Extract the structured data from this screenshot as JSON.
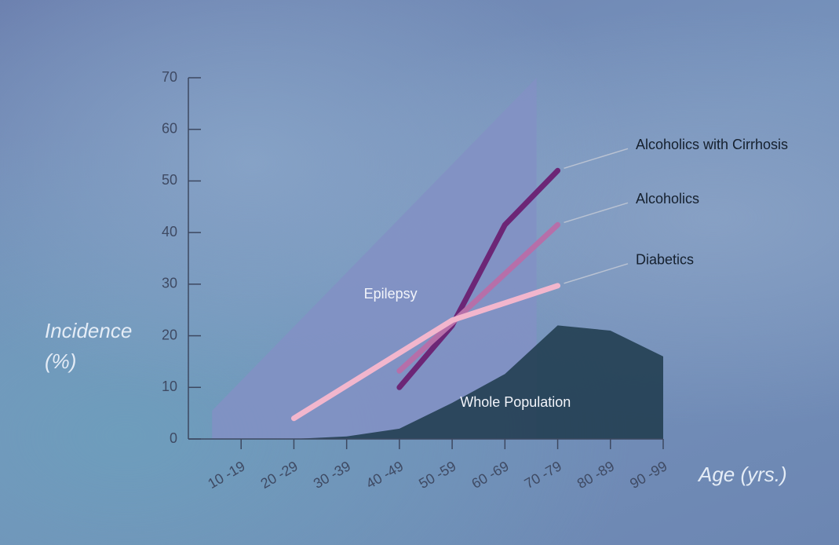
{
  "chart_data": {
    "type": "line",
    "y_label_lines": [
      "Incidence",
      "(%)"
    ],
    "x_label": "Age (yrs.)",
    "xlim": [
      5,
      95
    ],
    "xticks": [
      {
        "value": 15,
        "label": "10 -19"
      },
      {
        "value": 25,
        "label": "20 -29"
      },
      {
        "value": 35,
        "label": "30 -39"
      },
      {
        "value": 45,
        "label": "40 -49"
      },
      {
        "value": 55,
        "label": "50 -59"
      },
      {
        "value": 65,
        "label": "60 -69"
      },
      {
        "value": 75,
        "label": "70 -79"
      },
      {
        "value": 85,
        "label": "80 -89"
      },
      {
        "value": 95,
        "label": "90 -99"
      }
    ],
    "ylim": [
      0,
      70
    ],
    "yticks": [
      0,
      10,
      20,
      30,
      40,
      50,
      60,
      70
    ],
    "series": [
      {
        "name": "Epilepsy",
        "kind": "area",
        "color": "#8391c4",
        "x": [
          9.5,
          71
        ],
        "values": [
          5.5,
          70
        ]
      },
      {
        "name": "Whole Population",
        "kind": "area",
        "color": "#1d3a4b",
        "x": [
          15,
          25,
          35,
          45,
          55,
          65,
          75,
          85,
          95
        ],
        "values": [
          0,
          0,
          0.5,
          2,
          7,
          12.6,
          22,
          21,
          16
        ]
      },
      {
        "name": "Alcoholics with Cirrhosis",
        "kind": "line",
        "color": "#6c2676",
        "x": [
          45,
          55,
          65,
          75
        ],
        "values": [
          10,
          22,
          41.5,
          52
        ]
      },
      {
        "name": "Alcoholics",
        "kind": "line",
        "color": "#b66fa9",
        "x": [
          45,
          55,
          65,
          75
        ],
        "values": [
          13.2,
          22.5,
          32,
          41.5
        ]
      },
      {
        "name": "Diabetics",
        "kind": "line",
        "color": "#f2b6cd",
        "x": [
          25,
          55,
          75
        ],
        "values": [
          4,
          23,
          29.7
        ]
      }
    ]
  }
}
